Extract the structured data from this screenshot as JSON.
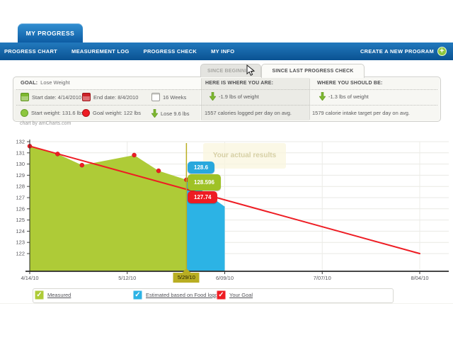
{
  "page": {
    "brand_tab": "MY PROGRESS"
  },
  "nav": {
    "items": [
      "PROGRESS CHART",
      "MEASUREMENT LOG",
      "PROGRESS CHECK",
      "MY INFO"
    ],
    "create_label": "CREATE A NEW PROGRAM",
    "plus_glyph": "+"
  },
  "tabs": {
    "since_beginning": "SINCE BEGINNING",
    "since_last": "SINCE LAST PROGRESS CHECK"
  },
  "goal": {
    "label": "GOAL:",
    "value": "Lose Weight",
    "start_date": "Start date: 4/14/2010",
    "end_date": "End date: 8/4/2010",
    "duration": "16 Weeks",
    "start_weight": "Start weight: 131.6 lbs",
    "goal_weight": "Goal weight: 122 lbs",
    "lose": "Lose 9.6 lbs"
  },
  "status": {
    "here": {
      "title": "HERE IS WHERE YOU ARE:",
      "weight": "-1.9 lbs of weight",
      "calories": "1557 calories logged per day on avg."
    },
    "should": {
      "title": "WHERE YOU SHOULD BE:",
      "weight": "-1.3 lbs of weight",
      "calories": "1579 calorie intake target per day on avg."
    }
  },
  "chart": {
    "credit": "chart by amCharts.com",
    "annotation": "Your actual results"
  },
  "chart_data": {
    "type": "area",
    "title": "",
    "x_axis": {
      "tick_labels": [
        "4/14/10",
        "5/12/10",
        "5/29/10",
        "6/09/10",
        "7/07/10",
        "8/04/10"
      ],
      "tick_days": [
        0,
        28,
        45,
        56,
        84,
        112
      ],
      "total_days": 112
    },
    "y_axis": {
      "min": 122,
      "max": 132,
      "step": 1,
      "unit": "lbs"
    },
    "series": [
      {
        "name": "Measured",
        "type": "area",
        "color": "#aecb37",
        "markers": true,
        "marker_color": "#ed1c24",
        "points_days": [
          0,
          8,
          15,
          30,
          37,
          45
        ],
        "values": [
          131.6,
          130.9,
          129.9,
          130.8,
          129.4,
          128.596
        ]
      },
      {
        "name": "Estimated based on Food logging",
        "type": "area",
        "color": "#2cb3e5",
        "points_days": [
          45,
          56
        ],
        "values": [
          128.6,
          126.2
        ]
      },
      {
        "name": "Your Goal",
        "type": "line",
        "color": "#ee1c23",
        "points_days": [
          0,
          112
        ],
        "values": [
          131.6,
          122
        ]
      }
    ],
    "cursor": {
      "day": 45,
      "label": "5/29/10",
      "balloons": [
        {
          "series": "Estimated based on Food logging",
          "value": "128.6",
          "color": "#29a8dd"
        },
        {
          "series": "Measured",
          "value": "128.596",
          "color": "#9fc226"
        },
        {
          "series": "Your Goal",
          "value": "127.74",
          "color": "#ee1c23"
        }
      ]
    },
    "grid": true,
    "legend_position": "bottom"
  },
  "legend": {
    "check_glyph": "✓",
    "items": [
      {
        "label": "Measured",
        "color": "#aecb37"
      },
      {
        "label": "Estimated based on Food logging",
        "color": "#2cb3e5"
      },
      {
        "label": "Your Goal",
        "color": "#ee1c23"
      }
    ]
  },
  "colors": {
    "nav_blue_top": "#2279bd",
    "nav_blue_bottom": "#0a5292",
    "accent_green": "#8dc63f",
    "cursor_olive": "#b9ae22",
    "axis": "#2b2b2b",
    "grid": "#e9e9e4"
  }
}
